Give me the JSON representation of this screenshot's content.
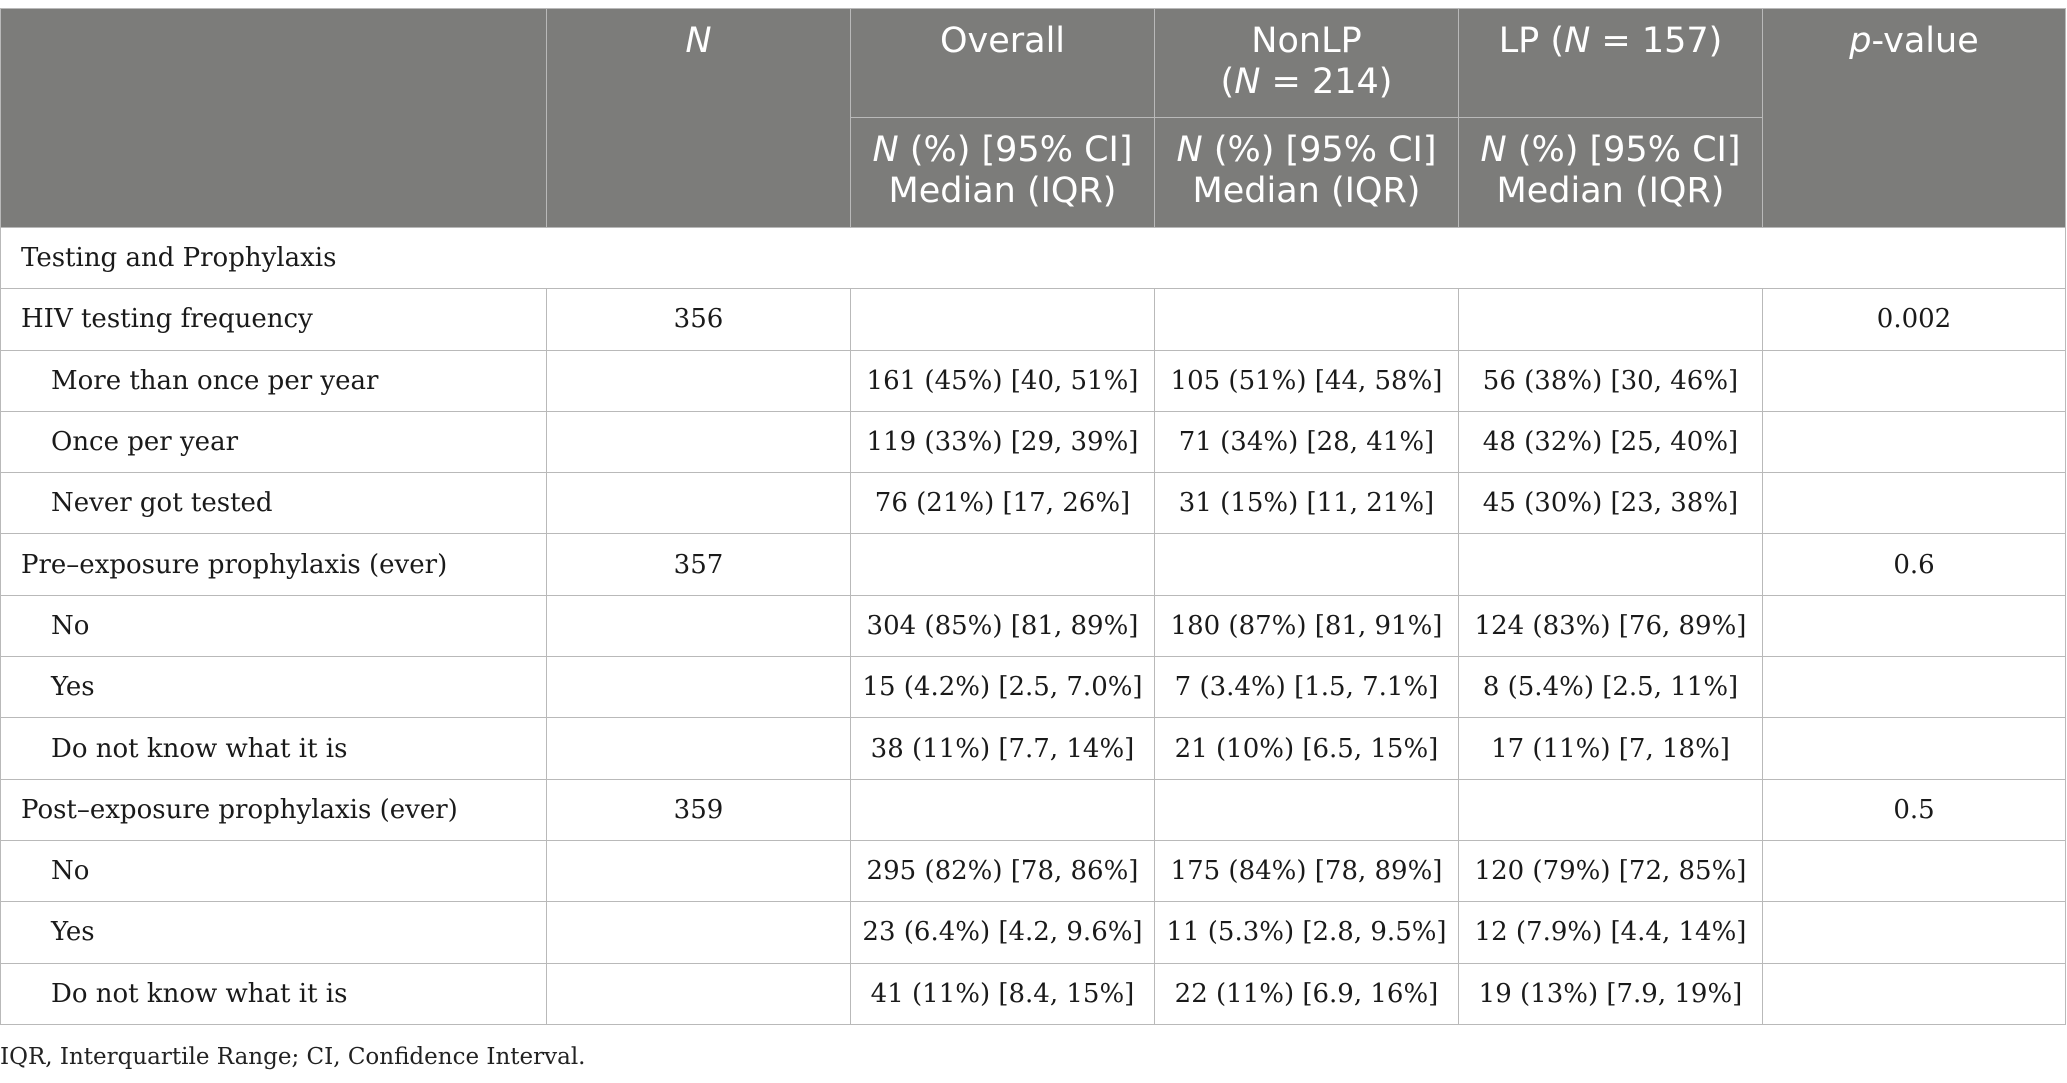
{
  "header": {
    "col_n": "N",
    "col_overall": "Overall",
    "col_nonlp_name": "NonLP",
    "col_nonlp_open": "(",
    "col_nonlp_n": "N",
    "col_nonlp_val": " = 214)",
    "col_lp_name": "LP (",
    "col_lp_n": "N",
    "col_lp_val": " = 157)",
    "col_p_italic": "p",
    "col_p_rest": "-value",
    "sub_n": "N",
    "sub_rest_line1": " (%) [95% CI]",
    "sub_line2": "Median (IQR)"
  },
  "section_title": "Testing and Prophylaxis",
  "rows": [
    {
      "label": "HIV testing frequency",
      "n": "356",
      "overall": "",
      "nonlp": "",
      "lp": "",
      "p": "0.002"
    },
    {
      "label": "More than once per year",
      "n": "",
      "overall": "161 (45%) [40, 51%]",
      "nonlp": "105 (51%) [44, 58%]",
      "lp": "56 (38%) [30, 46%]",
      "p": ""
    },
    {
      "label": "Once per year",
      "n": "",
      "overall": "119 (33%) [29, 39%]",
      "nonlp": "71 (34%) [28, 41%]",
      "lp": "48 (32%) [25, 40%]",
      "p": ""
    },
    {
      "label": "Never got tested",
      "n": "",
      "overall": "76 (21%) [17, 26%]",
      "nonlp": "31 (15%) [11, 21%]",
      "lp": "45 (30%) [23, 38%]",
      "p": ""
    },
    {
      "label": "Pre–exposure prophylaxis (ever)",
      "n": "357",
      "overall": "",
      "nonlp": "",
      "lp": "",
      "p": "0.6"
    },
    {
      "label": "No",
      "n": "",
      "overall": "304 (85%) [81, 89%]",
      "nonlp": "180 (87%) [81, 91%]",
      "lp": "124 (83%) [76, 89%]",
      "p": ""
    },
    {
      "label": "Yes",
      "n": "",
      "overall": "15 (4.2%) [2.5, 7.0%]",
      "nonlp": "7 (3.4%) [1.5, 7.1%]",
      "lp": "8 (5.4%) [2.5, 11%]",
      "p": ""
    },
    {
      "label": "Do not know what it is",
      "n": "",
      "overall": "38 (11%) [7.7, 14%]",
      "nonlp": "21 (10%) [6.5, 15%]",
      "lp": "17 (11%) [7, 18%]",
      "p": ""
    },
    {
      "label": "Post–exposure prophylaxis (ever)",
      "n": "359",
      "overall": "",
      "nonlp": "",
      "lp": "",
      "p": "0.5"
    },
    {
      "label": "No",
      "n": "",
      "overall": "295 (82%) [78, 86%]",
      "nonlp": "175 (84%) [78, 89%]",
      "lp": "120 (79%) [72, 85%]",
      "p": ""
    },
    {
      "label": "Yes",
      "n": "",
      "overall": "23 (6.4%) [4.2, 9.6%]",
      "nonlp": "11 (5.3%) [2.8, 9.5%]",
      "lp": "12 (7.9%) [4.4, 14%]",
      "p": ""
    },
    {
      "label": "Do not know what it is",
      "n": "",
      "overall": "41 (11%) [8.4, 15%]",
      "nonlp": "22 (11%) [6.9, 16%]",
      "lp": "19 (13%) [7.9, 19%]",
      "p": ""
    }
  ],
  "footnote": "IQR, Interquartile Range; CI, Confidence Interval.",
  "colors": {
    "header_bg": "#7c7c7a",
    "header_text": "#ffffff",
    "border": "#b9b9b9"
  }
}
